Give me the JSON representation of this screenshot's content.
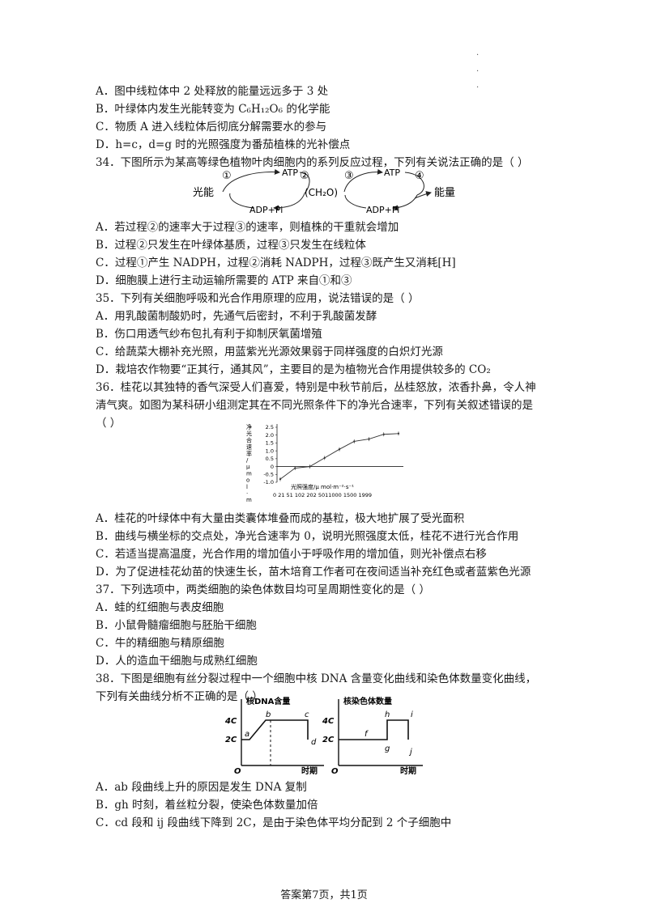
{
  "q33_options": [
    "A．图中线粒体中 2 处释放的能量远远多于 3 处",
    "B．叶绿体内发生光能转变为 C₆H₁₂O₆ 的化学能",
    "C．物质 A 进入线粒体后彻底分解需要水的参与",
    "D．h=c，d=g 时的光照强度为番茄植株的光补偿点"
  ],
  "q34": {
    "stem": "34．下图所示为某高等绿色植物叶肉细胞内的系列反应过程，下列有关说法正确的是（ ）",
    "diagram": {
      "light": "光能",
      "atp": "ATP",
      "adp": "ADP+Pi",
      "ch2o": "(CH₂O)",
      "energy": "能量",
      "n1": "①",
      "n2": "②",
      "n3": "③",
      "n4": "④"
    },
    "options": [
      "A．若过程②的速率大于过程③的速率，则植株的干重就会增加",
      "B．过程②只发生在叶绿体基质，过程③只发生在线粒体",
      "C．过程①产生 NADPH，过程②消耗 NADPH，过程③既产生又消耗[H]",
      "D．细胞膜上进行主动运输所需要的 ATP 来自①和③"
    ]
  },
  "q35": {
    "stem": "35．下列有关细胞呼吸和光合作用原理的应用，说法错误的是（ ）",
    "options": [
      "A．用乳酸菌制酸奶时，先通气后密封，不利于乳酸菌发酵",
      "B．伤口用透气纱布包扎有利于抑制厌氧菌增殖",
      "C．给蔬菜大棚补充光照，用蓝紫光光源效果弱于同样强度的白炽灯光源",
      "D．栽培农作物要“正其行，通其风”，主要目的是为植物光合作用提供较多的 CO₂"
    ]
  },
  "q36": {
    "stem_line1": "36．桂花以其独特的香气深受人们喜爱，特别是中秋节前后，丛桂怒放，浓香扑鼻，令人神",
    "stem_line2": "清气爽。如图为某科研小组测定其在不同光照条件下的净光合速率，下列有关叙述错误的是",
    "stem_line3": "（ ）",
    "chart": {
      "ylabel": "净光合速率/μmol·m⁻²·s⁻¹",
      "xlabel": "光照强度/μ mol·m⁻²·s⁻¹",
      "xtick_text": "0  21  51 102  202  5011000 1500  1999",
      "yticks": [
        "2.5",
        "2.0",
        "1.5",
        "1.0",
        "0.5",
        "0",
        "-0.5",
        "-1.0"
      ]
    },
    "options": [
      "A．桂花的叶绿体中有大量由类囊体堆叠而成的基粒，极大地扩展了受光面积",
      "B．曲线与横坐标的交点处，净光合速率为 0，说明光照强度太低，桂花不进行光合作用",
      "C．若适当提高温度，光合作用的增加值小于呼吸作用的增加值，则光补偿点右移",
      "D．为了促进桂花幼苗的快速生长，苗木培育工作者可在夜间适当补充红色或者蓝紫色光源"
    ]
  },
  "q37": {
    "stem": "37．下列选项中，两类细胞的染色体数目均可呈周期性变化的是（ ）",
    "options": [
      "A．蛙的红细胞与表皮细胞",
      "B．小鼠骨髓瘤细胞与胚胎干细胞",
      "C．牛的精细胞与精原细胞",
      "D．人的造血干细胞与成熟红细胞"
    ]
  },
  "q38": {
    "stem_line1": "38．下图是细胞有丝分裂过程中一个细胞中核 DNA 含量变化曲线和染色体数量变化曲线，",
    "stem_line2": "下列有关曲线分析不正确的是（ ）",
    "left_chart": {
      "title": "核DNA含量",
      "y4": "4C",
      "y2": "2C",
      "origin": "O",
      "xlabel": "时期",
      "points": {
        "a": "a",
        "b": "b",
        "c": "c",
        "d": "d"
      }
    },
    "right_chart": {
      "title": "核染色体数量",
      "y4": "4C",
      "y2": "2C",
      "origin": "O",
      "xlabel": "时期",
      "points": {
        "f": "f",
        "g": "g",
        "h": "h",
        "i": "i",
        "j": "j"
      }
    },
    "options": [
      "A．ab 段曲线上升的原因是发生 DNA 复制",
      "B．gh 时刻，着丝粒分裂，使染色体数量加倍",
      "C．cd 段和 ij 段曲线下降到 2C，是由于染色体平均分配到 2 个子细胞中"
    ]
  },
  "footer": "答案第7页，共1页",
  "chart_data": {
    "type": "line",
    "categories": [
      "0",
      "21",
      "51",
      "102",
      "202",
      "501",
      "1000",
      "1500",
      "1999"
    ],
    "values": [
      -0.8,
      -0.1,
      0.0,
      0.55,
      1.1,
      1.6,
      1.75,
      2.05,
      2.1
    ],
    "ylabel": "净光合速率/μmol·m⁻²·s⁻¹",
    "xlabel": "光照强度/μ mol·m⁻²·s⁻¹",
    "ylim": [
      -1.0,
      2.5
    ],
    "grid": false
  }
}
